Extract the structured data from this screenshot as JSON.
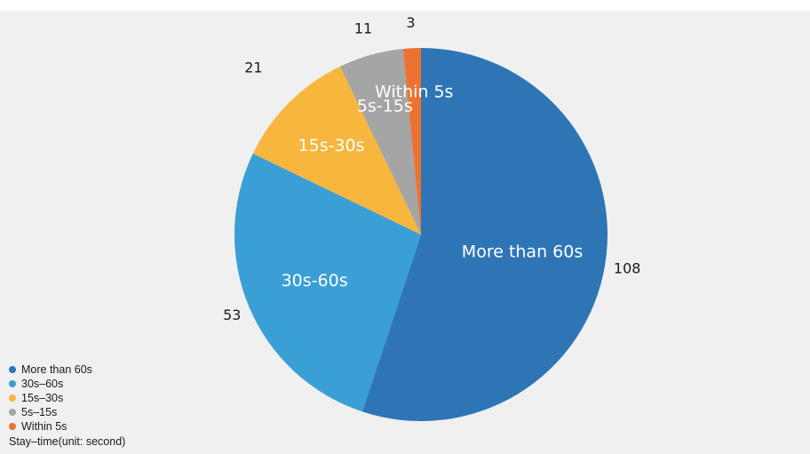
{
  "chart_data": {
    "type": "pie",
    "categories": [
      "More than 60s",
      "30s-60s",
      "15s-30s",
      "5s-15s",
      "Within 5s"
    ],
    "values": [
      108,
      53,
      21,
      11,
      3
    ],
    "slice_labels": [
      "More than 60s",
      "30s-60s",
      "15s-30s",
      "5s-15s",
      "Within 5s"
    ],
    "value_labels": [
      "108",
      "53",
      "21",
      "11",
      "3"
    ],
    "colors": [
      "#2e75b6",
      "#3a9fd5",
      "#f7b63e",
      "#a5a5a5",
      "#ed7131"
    ],
    "legend": {
      "placement": "bottom-left",
      "items": [
        "More than 60s",
        "30s–60s",
        "15s–30s",
        "5s–15s",
        "Within 5s"
      ],
      "title": "Stay–time(unit: second)"
    }
  }
}
